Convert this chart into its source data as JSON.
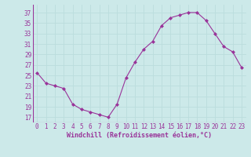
{
  "x": [
    0,
    1,
    2,
    3,
    4,
    5,
    6,
    7,
    8,
    9,
    10,
    11,
    12,
    13,
    14,
    15,
    16,
    17,
    18,
    19,
    20,
    21,
    22,
    23
  ],
  "y": [
    25.5,
    23.5,
    23.0,
    22.5,
    19.5,
    18.5,
    18.0,
    17.5,
    17.0,
    19.5,
    24.5,
    27.5,
    30.0,
    31.5,
    34.5,
    36.0,
    36.5,
    37.0,
    37.0,
    35.5,
    33.0,
    30.5,
    29.5,
    26.5
  ],
  "line_color": "#993399",
  "marker": "D",
  "marker_size": 2.0,
  "bg_color": "#cce9e9",
  "grid_color": "#bbdddd",
  "xlabel": "Windchill (Refroidissement éolien,°C)",
  "xlabel_color": "#993399",
  "ylabel_ticks": [
    17,
    19,
    21,
    23,
    25,
    27,
    29,
    31,
    33,
    35,
    37
  ],
  "xtick_labels": [
    "0",
    "1",
    "2",
    "3",
    "4",
    "5",
    "6",
    "7",
    "8",
    "9",
    "10",
    "11",
    "12",
    "13",
    "14",
    "15",
    "16",
    "17",
    "18",
    "19",
    "20",
    "21",
    "22",
    "23"
  ],
  "ylim": [
    16.0,
    38.5
  ],
  "xlim": [
    -0.5,
    23.5
  ],
  "tick_fontsize": 5.5,
  "xlabel_fontsize": 6.0
}
